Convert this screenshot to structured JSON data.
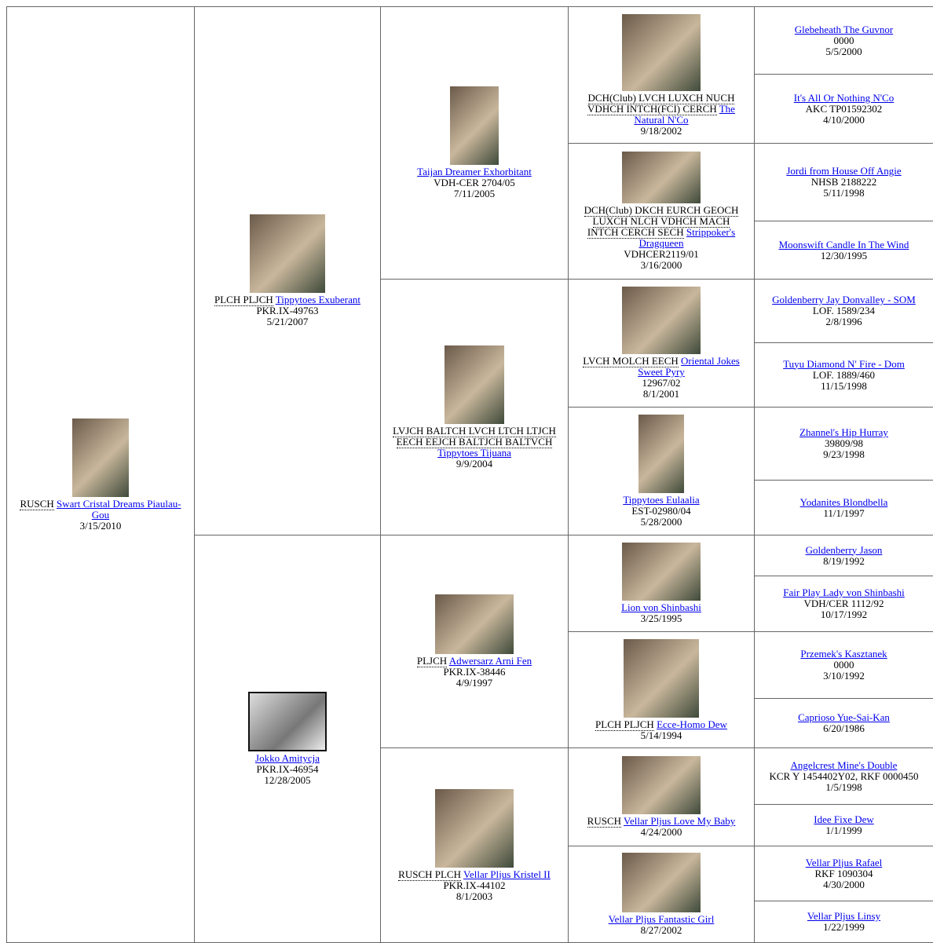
{
  "generations": [
    [
      {
        "titles": "RUSCH",
        "name": "Swart Cristal Dreams Piaulau-Gou",
        "date": "3/15/2010"
      }
    ],
    [
      {
        "titles": "PLCH PLJCH",
        "name": "Tippytoes Exuberant",
        "reg": "PKR.IX-49763",
        "date": "5/21/2007"
      },
      {
        "name": "Jokko Amitycja",
        "reg": "PKR.IX-46954",
        "date": "12/28/2005"
      }
    ],
    [
      {
        "name": "Taijan Dreamer Exhorbitant",
        "reg": "VDH-CER 2704/05",
        "date": "7/11/2005"
      },
      {
        "titles": "LVJCH BALTCH LVCH LTCH LTJCH EECH EEJCH BALTJCH BALTVCH",
        "name": "Tippytoes Tijuana",
        "date": "9/9/2004"
      },
      {
        "titles": "PLJCH",
        "name": "Adwersarz Arni Fen",
        "reg": "PKR.IX-38446",
        "date": "4/9/1997"
      },
      {
        "titles": "RUSCH PLCH",
        "name": "Vellar Pljus Kristel II",
        "reg": "PKR.IX-44102",
        "date": "8/1/2003"
      }
    ],
    [
      {
        "titles": "DCH(Club) LVCH LUXCH NUCH VDHCH INTCH(FCI) CERCH",
        "name": "The Natural N'Co",
        "date": "9/18/2002"
      },
      {
        "titles": "DCH(Club) DKCH EURCH GEOCH LUXCH NLCH VDHCH MACH INTCH CERCH SECH",
        "name": "Strippoker's Dragqueen",
        "reg": "VDHCER2119/01",
        "date": "3/16/2000"
      },
      {
        "titles": "LVCH MOLCH EECH",
        "name": "Oriental Jokes Sweet Pyry",
        "reg": "12967/02",
        "date": "8/1/2001"
      },
      {
        "name": "Tippytoes Eulaalia",
        "reg": "EST-02980/04",
        "date": "5/28/2000"
      },
      {
        "name": "Lion von Shinbashi",
        "date": "3/25/1995"
      },
      {
        "titles": "PLCH PLJCH",
        "name": "Ecce-Homo Dew",
        "date": "5/14/1994"
      },
      {
        "titles": "RUSCH",
        "name": "Vellar Pljus Love My Baby",
        "date": "4/24/2000"
      },
      {
        "name": "Vellar Pljus Fantastic Girl",
        "date": "8/27/2002"
      }
    ],
    [
      {
        "name": "Glebeheath The Guvnor",
        "reg": "0000",
        "date": "5/5/2000"
      },
      {
        "name": "It's All Or Nothing N'Co",
        "reg": "AKC TP01592302",
        "date": "4/10/2000"
      },
      {
        "name": "Jordi from House Off Angie",
        "reg": "NHSB 2188222",
        "date": "5/11/1998"
      },
      {
        "name": "Moonswift Candle In The Wind",
        "date": "12/30/1995"
      },
      {
        "name": "Goldenberry Jay Donvalley - SOM",
        "reg": "LOF. 1589/234",
        "date": "2/8/1996"
      },
      {
        "name": "Tuyu Diamond N' Fire - Dom",
        "reg": "LOF. 1889/460",
        "date": "11/15/1998"
      },
      {
        "name": "Zhannel's Hip Hurray",
        "reg": "39809/98",
        "date": "9/23/1998"
      },
      {
        "name": "Yodanites Blondbella",
        "date": "11/1/1997"
      },
      {
        "name": "Goldenberry Jason",
        "date": "8/19/1992"
      },
      {
        "name": "Fair Play Lady von Shinbashi",
        "reg": "VDH/CER 1112/92",
        "date": "10/17/1992"
      },
      {
        "name": "Przemek's Kasztanek",
        "reg": "0000",
        "date": "3/10/1992"
      },
      {
        "name": "Caprioso Yue-Sai-Kan",
        "date": "6/20/1986"
      },
      {
        "name": "Angelcrest Mine's Double",
        "reg": "KCR Y 1454402Y02, RKF 0000450",
        "date": "1/5/1998"
      },
      {
        "name": "Idee Fixe Dew",
        "date": "1/1/1999"
      },
      {
        "name": "Vellar Pljus Rafael",
        "reg": "RKF 1090304",
        "date": "4/30/2000"
      },
      {
        "name": "Vellar Pljus Linsy",
        "date": "1/22/1999"
      }
    ]
  ]
}
